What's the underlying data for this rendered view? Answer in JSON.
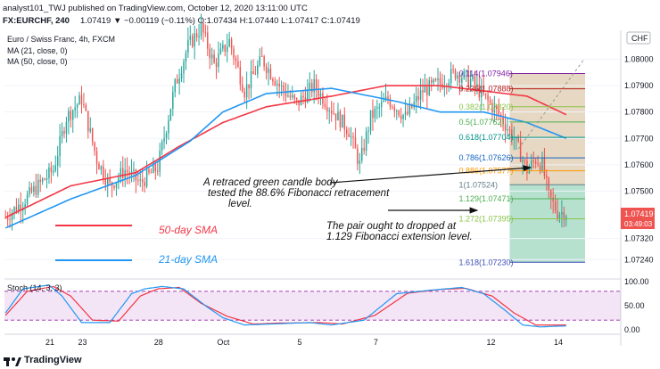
{
  "header": {
    "line1": "analyst101_TWJ published on TradingView.com, October 12, 2020 13:11:00 UTC",
    "line2_symbol": "FX:EURCHF, 240",
    "line2_quote": "1.07419 ▼ −0.00119 (−0.11%)  O:1.07434  H:1.07440  L:1.07417  C:1.07419"
  },
  "legend": {
    "title": "Euro / Swiss Franc, 4h, FXCM",
    "ma21": "MA (21, close, 0)",
    "ma50": "MA (50, close, 0)",
    "stoch": "Stoch (14, 3, 3)"
  },
  "currency_badge": "CHF",
  "price_badge": {
    "price": "1.07419",
    "countdown": "03:49:03"
  },
  "annotations": {
    "green_candle": [
      "A retraced green candle body",
      "tested the  88.6% Fibonacci retracement",
      "level."
    ],
    "pair_dropped": [
      "The pair ought to dropped at",
      "1.129 Fibonacci extension level."
    ],
    "sma50_label": "50-day SMA",
    "sma21_label": "21-day SMA"
  },
  "footer": {
    "brand": "TradingView"
  },
  "colors": {
    "up": "#26a69a",
    "down": "#ef5350",
    "ma21": "#2196f3",
    "ma50": "#f23645",
    "stoch_k": "#2196f3",
    "stoch_d": "#f23645",
    "stoch_band": "#9c27b0",
    "fib_top": "#c8a878",
    "fib_bottom": "#7cc9a8"
  },
  "chart_data": {
    "type": "candlestick",
    "symbol": "EURCHF",
    "interval": "4h",
    "price_axis": {
      "min": 1.0717,
      "max": 1.0811,
      "ticks": [
        "1.08000",
        "1.07900",
        "1.07800",
        "1.07700",
        "1.07600",
        "1.07500",
        "1.07320",
        "1.07240"
      ]
    },
    "x_ticks": [
      "21",
      "23",
      "28",
      "Oct",
      "5",
      "7",
      "12",
      "14"
    ],
    "fibonacci": [
      {
        "level": "0.114",
        "price": 1.07946,
        "label": "0.114(1.07946)"
      },
      {
        "level": "0.236",
        "price": 1.07888,
        "label": "0.236(1.07888)"
      },
      {
        "level": "0.382",
        "price": 1.0782,
        "label": "0.382(1.07820)"
      },
      {
        "level": "0.5",
        "price": 1.07762,
        "label": "0.5(1.07762)"
      },
      {
        "level": "0.618",
        "price": 1.07704,
        "label": "0.618(1.07704)"
      },
      {
        "level": "0.786",
        "price": 1.07626,
        "label": "0.786(1.07626)"
      },
      {
        "level": "0.886",
        "price": 1.07577,
        "label": "0.886(1.07577)"
      },
      {
        "level": "1",
        "price": 1.07524,
        "label": "1(1.07524)"
      },
      {
        "level": "1.129",
        "price": 1.07471,
        "label": "1.129(1.07471)"
      },
      {
        "level": "1.272",
        "price": 1.07395,
        "label": "1.272(1.07395)"
      },
      {
        "level": "1.618",
        "price": 1.0723,
        "label": "1.618(1.07230)"
      }
    ],
    "ma21_anchors": [
      [
        0,
        1.0736
      ],
      [
        30,
        1.0747
      ],
      [
        60,
        1.0756
      ],
      [
        85,
        1.0769
      ],
      [
        100,
        1.078
      ],
      [
        120,
        1.0787
      ],
      [
        150,
        1.0789
      ],
      [
        180,
        1.0784
      ],
      [
        200,
        1.078
      ],
      [
        220,
        1.078
      ],
      [
        240,
        1.0776
      ],
      [
        258,
        1.077
      ]
    ],
    "ma50_anchors": [
      [
        0,
        1.074
      ],
      [
        30,
        1.0752
      ],
      [
        60,
        1.0757
      ],
      [
        80,
        1.0767
      ],
      [
        100,
        1.0776
      ],
      [
        120,
        1.0782
      ],
      [
        150,
        1.0786
      ],
      [
        175,
        1.079
      ],
      [
        200,
        1.079
      ],
      [
        220,
        1.0788
      ],
      [
        240,
        1.0786
      ],
      [
        258,
        1.0779
      ]
    ],
    "price_anchors": [
      [
        0,
        1.074
      ],
      [
        8,
        1.0746
      ],
      [
        15,
        1.0752
      ],
      [
        22,
        1.0758
      ],
      [
        28,
        1.0778
      ],
      [
        35,
        1.0785
      ],
      [
        42,
        1.0762
      ],
      [
        48,
        1.0752
      ],
      [
        55,
        1.0758
      ],
      [
        62,
        1.0753
      ],
      [
        70,
        1.0759
      ],
      [
        78,
        1.079
      ],
      [
        84,
        1.0805
      ],
      [
        90,
        1.0812
      ],
      [
        96,
        1.0798
      ],
      [
        103,
        1.0807
      ],
      [
        110,
        1.0788
      ],
      [
        118,
        1.08
      ],
      [
        126,
        1.079
      ],
      [
        134,
        1.0783
      ],
      [
        142,
        1.079
      ],
      [
        150,
        1.0781
      ],
      [
        158,
        1.0773
      ],
      [
        163,
        1.076
      ],
      [
        168,
        1.0778
      ],
      [
        176,
        1.0785
      ],
      [
        184,
        1.0778
      ],
      [
        192,
        1.0788
      ],
      [
        200,
        1.0791
      ],
      [
        207,
        1.0795
      ],
      [
        214,
        1.0792
      ],
      [
        221,
        1.0785
      ],
      [
        228,
        1.0778
      ],
      [
        234,
        1.077
      ],
      [
        240,
        1.0758
      ],
      [
        244,
        1.0762
      ],
      [
        247,
        1.076
      ],
      [
        250,
        1.0748
      ],
      [
        254,
        1.0742
      ],
      [
        258,
        1.07419
      ]
    ],
    "stoch_k_anchors": [
      [
        0,
        0.35
      ],
      [
        8,
        0.85
      ],
      [
        20,
        0.93
      ],
      [
        26,
        0.7
      ],
      [
        35,
        0.15
      ],
      [
        48,
        0.15
      ],
      [
        58,
        0.75
      ],
      [
        64,
        0.85
      ],
      [
        72,
        0.9
      ],
      [
        82,
        0.85
      ],
      [
        92,
        0.5
      ],
      [
        100,
        0.25
      ],
      [
        110,
        0.1
      ],
      [
        122,
        0.12
      ],
      [
        140,
        0.15
      ],
      [
        150,
        0.1
      ],
      [
        165,
        0.2
      ],
      [
        180,
        0.75
      ],
      [
        195,
        0.82
      ],
      [
        210,
        0.88
      ],
      [
        220,
        0.75
      ],
      [
        230,
        0.4
      ],
      [
        238,
        0.1
      ],
      [
        246,
        0.06
      ],
      [
        258,
        0.08
      ]
    ],
    "stoch_d_anchors": [
      [
        0,
        0.3
      ],
      [
        10,
        0.8
      ],
      [
        22,
        0.9
      ],
      [
        30,
        0.7
      ],
      [
        40,
        0.2
      ],
      [
        52,
        0.18
      ],
      [
        62,
        0.7
      ],
      [
        70,
        0.85
      ],
      [
        80,
        0.88
      ],
      [
        90,
        0.55
      ],
      [
        102,
        0.28
      ],
      [
        114,
        0.12
      ],
      [
        126,
        0.14
      ],
      [
        145,
        0.15
      ],
      [
        155,
        0.12
      ],
      [
        170,
        0.3
      ],
      [
        185,
        0.76
      ],
      [
        200,
        0.84
      ],
      [
        212,
        0.86
      ],
      [
        224,
        0.7
      ],
      [
        234,
        0.35
      ],
      [
        244,
        0.1
      ],
      [
        258,
        0.1
      ]
    ],
    "stoch_axis": [
      "100.00",
      "50.00",
      "0.00"
    ]
  }
}
